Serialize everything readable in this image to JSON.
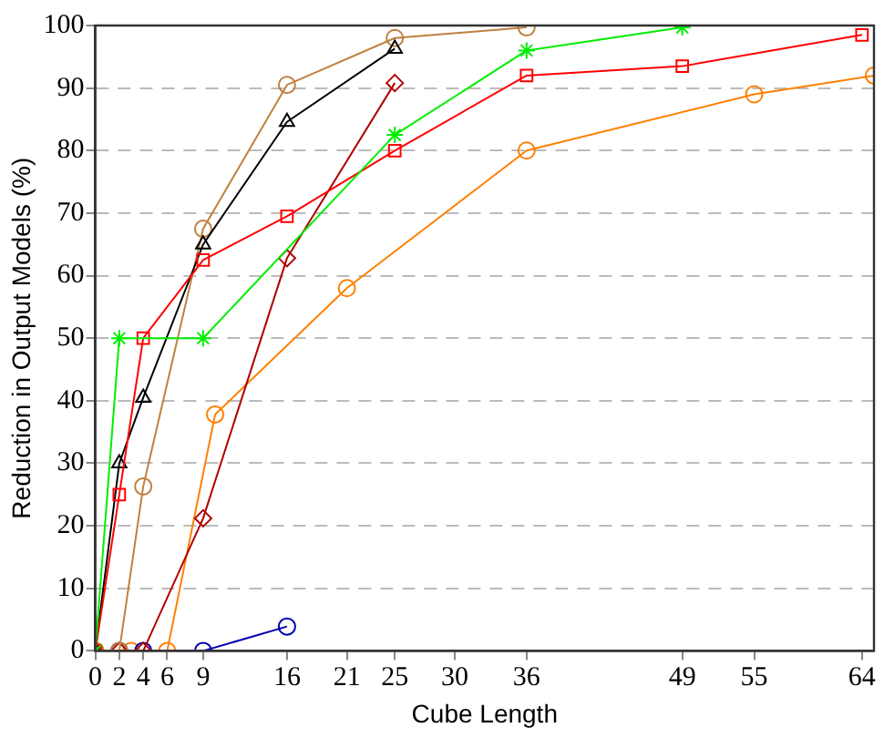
{
  "chart_data": {
    "type": "line",
    "xlabel": "Cube Length",
    "ylabel": "Reduction in Output Models (%)",
    "xlim": [
      0,
      65
    ],
    "xticks": [
      0,
      2,
      4,
      6,
      9,
      16,
      21,
      25,
      30,
      36,
      49,
      55,
      64
    ],
    "ylim": [
      0,
      100
    ],
    "yticks": [
      0,
      10,
      20,
      30,
      40,
      50,
      60,
      70,
      80,
      90,
      100
    ],
    "grid": "y",
    "legend": false,
    "series": [
      {
        "color": "#00ee00",
        "marker": "cross",
        "x": [
          0,
          2,
          9,
          25,
          36,
          49
        ],
        "values": [
          0,
          50,
          50,
          82.5,
          96,
          99.7
        ]
      },
      {
        "color": "#ff0000",
        "marker": "square",
        "x": [
          0,
          2,
          4,
          9,
          16,
          25,
          36,
          49,
          64
        ],
        "values": [
          0,
          25,
          50,
          62.5,
          69.5,
          80,
          92,
          93.5,
          98.5
        ]
      },
      {
        "color": "#000000",
        "marker": "triangle",
        "x": [
          0,
          2,
          4,
          9,
          16,
          25
        ],
        "values": [
          0,
          30,
          40.5,
          65,
          84.6,
          96.3
        ]
      },
      {
        "color": "#c08040",
        "marker": "circle",
        "x": [
          0,
          2,
          4,
          9,
          16,
          25,
          36
        ],
        "values": [
          0,
          0,
          26.3,
          67.5,
          90.5,
          98,
          99.7
        ]
      },
      {
        "color": "#b00000",
        "marker": "diamond",
        "x": [
          0,
          2,
          4,
          9,
          16,
          25
        ],
        "values": [
          0,
          0,
          0,
          21.2,
          62.8,
          90.8
        ]
      },
      {
        "color": "#0000b0",
        "marker": "circle",
        "x": [
          2,
          4,
          9,
          16
        ],
        "values": [
          0,
          0,
          0,
          3.9
        ]
      },
      {
        "color": "#ff8000",
        "marker": "circle",
        "x": [
          0,
          3,
          6,
          10,
          21,
          36,
          55,
          65
        ],
        "values": [
          0,
          0,
          0,
          37.8,
          58,
          80,
          89,
          92
        ]
      }
    ]
  }
}
